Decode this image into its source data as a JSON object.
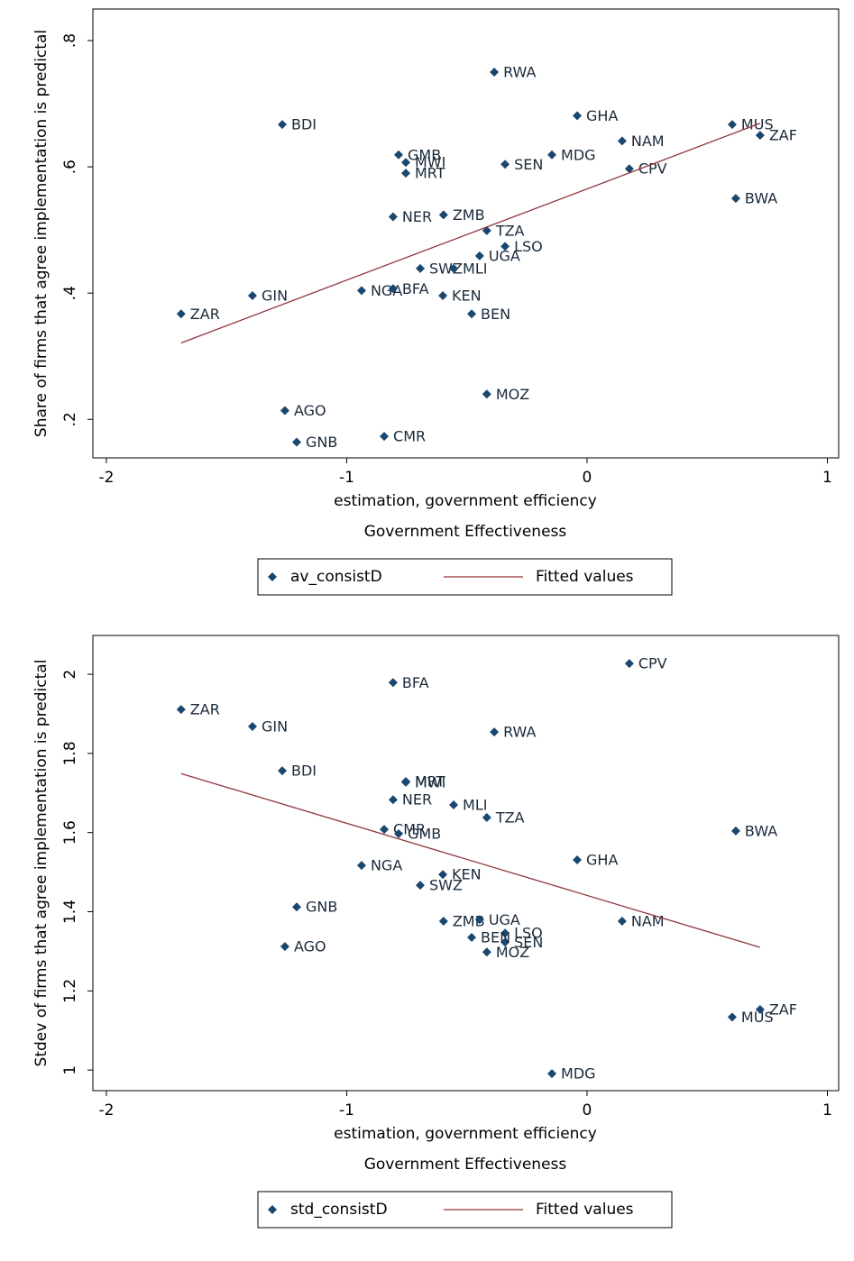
{
  "chart_data": [
    {
      "type": "scatter",
      "ylabel": "Share of firms that agree implementation is predictal",
      "xlabel": "estimation, government efficiency",
      "xlabel_note": "Government Effectiveness",
      "xlim": [
        -2.056,
        1.047
      ],
      "xticks": [
        -2,
        -1,
        0,
        1
      ],
      "ylim": [
        0.139,
        0.85
      ],
      "yticks": [
        {
          "value": 0.2,
          "label": ".2"
        },
        {
          "value": 0.4,
          "label": ".4"
        },
        {
          "value": 0.6,
          "label": ".6"
        },
        {
          "value": 0.8,
          "label": ".8"
        }
      ],
      "series": [
        {
          "name": "av_consistD",
          "color": "#1a476f",
          "style": "marker",
          "point_labels": [
            "RWA",
            "BDI",
            "GHA",
            "MUS",
            "ZAF",
            "NAM",
            "GMB",
            "MWI",
            "MRT",
            "SEN",
            "MDG",
            "CPV",
            "BWA",
            "NER",
            "ZMB",
            "TZA",
            "LSO",
            "UGA",
            "SWZ",
            "MLI",
            "NGA",
            "BFA",
            "KEN",
            "GIN",
            "ZAR",
            "BEN",
            "MOZ",
            "AGO",
            "CMR",
            "GNB"
          ],
          "x": [
            -0.386,
            -1.268,
            -0.041,
            0.604,
            0.72,
            0.146,
            -0.784,
            -0.754,
            -0.754,
            -0.341,
            -0.146,
            0.176,
            0.619,
            -0.807,
            -0.597,
            -0.417,
            -0.341,
            -0.447,
            -0.694,
            -0.555,
            -0.938,
            -0.807,
            -0.6,
            -1.392,
            -1.689,
            -0.48,
            -0.417,
            -1.257,
            -0.844,
            -1.208
          ],
          "values": [
            0.75,
            0.667,
            0.681,
            0.667,
            0.65,
            0.641,
            0.619,
            0.607,
            0.59,
            0.604,
            0.619,
            0.597,
            0.55,
            0.521,
            0.524,
            0.499,
            0.474,
            0.459,
            0.439,
            0.439,
            0.404,
            0.407,
            0.396,
            0.396,
            0.367,
            0.367,
            0.24,
            0.214,
            0.173,
            0.164
          ]
        },
        {
          "name": "Fitted values",
          "color": "#90353b",
          "style": "line",
          "x": [
            -1.689,
            0.72
          ],
          "values": [
            0.321,
            0.669
          ]
        }
      ]
    },
    {
      "type": "scatter",
      "ylabel": "Stdev of firms that agree implementation is predictal",
      "xlabel": "estimation, government efficiency",
      "xlabel_note": "Government Effectiveness",
      "xlim": [
        -2.056,
        1.047
      ],
      "xticks": [
        -2,
        -1,
        0,
        1
      ],
      "ylim": [
        0.948,
        2.098
      ],
      "yticks": [
        1,
        1.2,
        1.4,
        1.6,
        1.8,
        2
      ],
      "series": [
        {
          "name": "std_consistD",
          "color": "#1a476f",
          "style": "marker",
          "point_labels": [
            "CPV",
            "BFA",
            "ZAR",
            "GIN",
            "RWA",
            "BDI",
            "MRT",
            "MWI",
            "NER",
            "MLI",
            "TZA",
            "BWA",
            "CMR",
            "GMB",
            "GHA",
            "NGA",
            "KEN",
            "SWZ",
            "GNB",
            "ZMB",
            "UGA",
            "NAM",
            "LSO",
            "SEN",
            "BEN",
            "MOZ",
            "AGO",
            "ZAF",
            "MUS",
            "MDG"
          ],
          "x": [
            0.176,
            -0.807,
            -1.689,
            -1.392,
            -0.386,
            -1.268,
            -0.754,
            -0.754,
            -0.807,
            -0.555,
            -0.417,
            0.619,
            -0.844,
            -0.784,
            -0.041,
            -0.938,
            -0.6,
            -0.694,
            -1.208,
            -0.597,
            -0.447,
            0.146,
            -0.341,
            -0.341,
            -0.48,
            -0.417,
            -1.257,
            0.72,
            0.604,
            -0.146
          ],
          "values": [
            2.027,
            1.979,
            1.911,
            1.868,
            1.854,
            1.756,
            1.729,
            1.727,
            1.683,
            1.67,
            1.638,
            1.604,
            1.608,
            1.597,
            1.531,
            1.517,
            1.494,
            1.467,
            1.412,
            1.376,
            1.38,
            1.376,
            1.346,
            1.323,
            1.335,
            1.298,
            1.312,
            1.153,
            1.134,
            0.991
          ]
        },
        {
          "name": "Fitted values",
          "color": "#90353b",
          "style": "line",
          "x": [
            -1.689,
            0.72
          ],
          "values": [
            1.749,
            1.31
          ]
        }
      ]
    }
  ]
}
